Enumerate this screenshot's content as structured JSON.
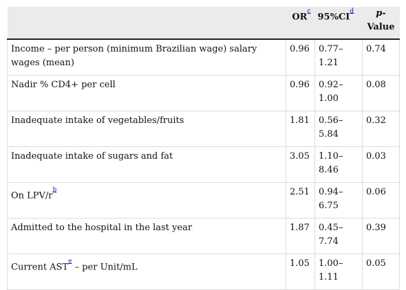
{
  "header": {
    "or_label": "OR",
    "or_ref": "c",
    "ci_label": "95%CI",
    "ci_ref": "d",
    "p_prefix": "p",
    "p_label": "-Value"
  },
  "rows": [
    {
      "variable": "Income – per person (minimum Brazilian wage) salary wages (mean)",
      "var_ref": "",
      "var_tail": "",
      "or": "0.96",
      "ci_low": "0.77–",
      "ci_high": "1.21",
      "p": "0.74"
    },
    {
      "variable": "Nadir % CD4+ per cell",
      "var_ref": "",
      "var_tail": "",
      "or": "0.96",
      "ci_low": "0.92–",
      "ci_high": "1.00",
      "p": "0.08"
    },
    {
      "variable": "Inadequate intake of vegetables/fruits",
      "var_ref": "",
      "var_tail": "",
      "or": "1.81",
      "ci_low": "0.56–",
      "ci_high": "5.84",
      "p": "0.32"
    },
    {
      "variable": "Inadequate intake of sugars and fat",
      "var_ref": "",
      "var_tail": "",
      "or": "3.05",
      "ci_low": "1.10–",
      "ci_high": "8.46",
      "p": "0.03"
    },
    {
      "variable": "On LPV/r",
      "var_ref": "b",
      "var_tail": "",
      "or": "2.51",
      "ci_low": "0.94–",
      "ci_high": "6.75",
      "p": "0.06"
    },
    {
      "variable": "Admitted to the hospital in the last year",
      "var_ref": "",
      "var_tail": "",
      "or": "1.87",
      "ci_low": "0.45–",
      "ci_high": "7.74",
      "p": "0.39"
    },
    {
      "variable": "Current AST",
      "var_ref": "e",
      "var_tail": " – per Unit/mL",
      "or": "1.05",
      "ci_low": "1.00–",
      "ci_high": "1.11",
      "p": "0.05"
    }
  ]
}
